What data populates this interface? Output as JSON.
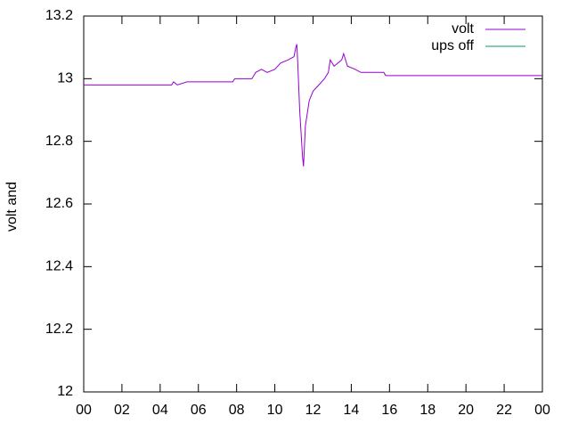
{
  "chart_data": {
    "type": "line",
    "y_label": "volt and",
    "x": [
      0,
      4.6,
      4.7,
      4.9,
      5.4,
      7.8,
      7.9,
      8.8,
      9.0,
      9.3,
      9.6,
      10.0,
      10.3,
      10.7,
      11.0,
      11.1,
      11.15,
      11.2,
      11.3,
      11.45,
      11.5,
      11.6,
      11.8,
      12.0,
      12.3,
      12.6,
      12.8,
      12.9,
      13.1,
      13.3,
      13.5,
      13.6,
      13.8,
      14.2,
      14.5,
      15.7,
      15.8,
      24
    ],
    "series": [
      {
        "name": "volt",
        "color": "#9400d3",
        "values": [
          12.98,
          12.98,
          12.99,
          12.98,
          12.99,
          12.99,
          13.0,
          13.0,
          13.02,
          13.03,
          13.02,
          13.03,
          13.05,
          13.06,
          13.07,
          13.1,
          13.11,
          13.05,
          12.9,
          12.75,
          12.72,
          12.85,
          12.93,
          12.96,
          12.98,
          13.0,
          13.02,
          13.06,
          13.04,
          13.05,
          13.06,
          13.08,
          13.04,
          13.03,
          13.02,
          13.02,
          13.01,
          13.01
        ]
      },
      {
        "name": "ups off",
        "color": "#009e73",
        "x": [],
        "values": []
      }
    ],
    "xlim": [
      0,
      24
    ],
    "xticks": [
      {
        "value": 0,
        "label": "00"
      },
      {
        "value": 2,
        "label": "02"
      },
      {
        "value": 4,
        "label": "04"
      },
      {
        "value": 6,
        "label": "06"
      },
      {
        "value": 8,
        "label": "08"
      },
      10,
      12,
      14,
      16,
      18,
      20,
      22,
      {
        "value": 24,
        "label": "00"
      }
    ],
    "ylim": [
      12,
      13.2
    ],
    "yticks": [
      12,
      12.2,
      12.4,
      12.6,
      12.8,
      13,
      13.2
    ],
    "legend": "top-right"
  }
}
